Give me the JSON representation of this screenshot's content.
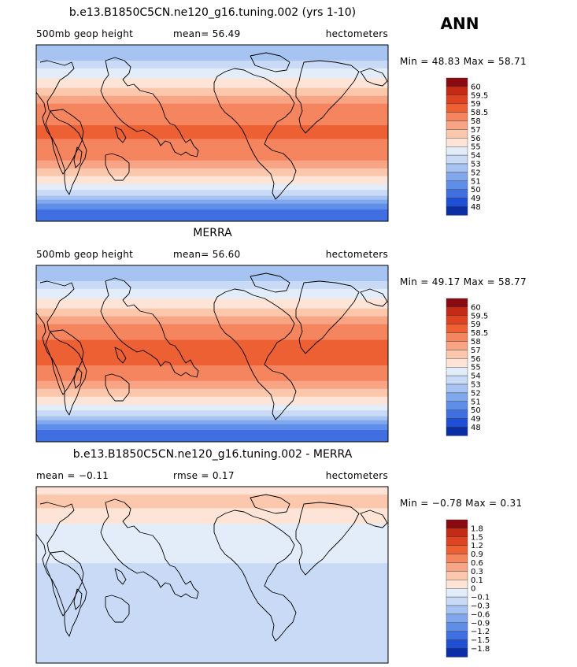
{
  "season": "ANN",
  "chart_data": [
    {
      "type": "heatmap",
      "title": "b.e13.B1850C5CN.ne120_g16.tuning.002 (yrs 1-10)",
      "left_label": "500mb geop height",
      "center_label": "mean=  56.49",
      "right_label": "hectometers",
      "minmax_label": "Min =  48.83 Max =  58.71",
      "min": 48.83,
      "max": 58.71,
      "mean": 56.49,
      "legend_levels": [
        "60",
        "59.5",
        "59",
        "58.5",
        "58",
        "57",
        "56",
        "55",
        "54",
        "53",
        "52",
        "51",
        "50",
        "49",
        "48"
      ],
      "legend_colors": [
        "#8a0a12",
        "#c42a16",
        "#dd4320",
        "#ec6034",
        "#f5855e",
        "#f8a585",
        "#fbc8ad",
        "#fde4d6",
        "#e3ecf9",
        "#c8daf6",
        "#a6c3f1",
        "#81a8ed",
        "#5f8ee9",
        "#3f6fe0",
        "#1e4fd4",
        "#0b2ea6"
      ],
      "zonal_bands": [
        {
          "lat": 90,
          "level": 52
        },
        {
          "lat": 78,
          "level": 52.5
        },
        {
          "lat": 70,
          "level": 53.5
        },
        {
          "lat": 60,
          "level": 54.5
        },
        {
          "lat": 50,
          "level": 55.5
        },
        {
          "lat": 42,
          "level": 56.5
        },
        {
          "lat": 35,
          "level": 57.5
        },
        {
          "lat": 28,
          "level": 58.2
        },
        {
          "lat": 0,
          "level": 58.6
        },
        {
          "lat": -25,
          "level": 58.2
        },
        {
          "lat": -32,
          "level": 57.5
        },
        {
          "lat": -40,
          "level": 56.5
        },
        {
          "lat": -48,
          "level": 55.5
        },
        {
          "lat": -54,
          "level": 54.5
        },
        {
          "lat": -60,
          "level": 53.5
        },
        {
          "lat": -66,
          "level": 52.5
        },
        {
          "lat": -70,
          "level": 51.5
        },
        {
          "lat": -75,
          "level": 50.5
        },
        {
          "lat": -80,
          "level": 49.5
        },
        {
          "lat": -90,
          "level": 49
        }
      ]
    },
    {
      "type": "heatmap",
      "title": "MERRA",
      "left_label": "500mb geop height",
      "center_label": "mean=  56.60",
      "right_label": "hectometers",
      "minmax_label": "Min =  49.17 Max =  58.77",
      "min": 49.17,
      "max": 58.77,
      "mean": 56.6,
      "legend_levels": [
        "60",
        "59.5",
        "59",
        "58.5",
        "58",
        "57",
        "56",
        "55",
        "54",
        "53",
        "52",
        "51",
        "50",
        "49",
        "48"
      ],
      "legend_colors": [
        "#8a0a12",
        "#c42a16",
        "#dd4320",
        "#ec6034",
        "#f5855e",
        "#f8a585",
        "#fbc8ad",
        "#fde4d6",
        "#e3ecf9",
        "#c8daf6",
        "#a6c3f1",
        "#81a8ed",
        "#5f8ee9",
        "#3f6fe0",
        "#1e4fd4",
        "#0b2ea6"
      ],
      "zonal_bands": [
        {
          "lat": 90,
          "level": 52
        },
        {
          "lat": 78,
          "level": 52.5
        },
        {
          "lat": 70,
          "level": 53.5
        },
        {
          "lat": 60,
          "level": 54.5
        },
        {
          "lat": 50,
          "level": 55.5
        },
        {
          "lat": 42,
          "level": 56.5
        },
        {
          "lat": 35,
          "level": 57.5
        },
        {
          "lat": 28,
          "level": 58.3
        },
        {
          "lat": 0,
          "level": 58.7
        },
        {
          "lat": -25,
          "level": 58.3
        },
        {
          "lat": -32,
          "level": 57.5
        },
        {
          "lat": -40,
          "level": 56.5
        },
        {
          "lat": -48,
          "level": 55.5
        },
        {
          "lat": -54,
          "level": 54.5
        },
        {
          "lat": -60,
          "level": 53.5
        },
        {
          "lat": -66,
          "level": 52.5
        },
        {
          "lat": -70,
          "level": 51.5
        },
        {
          "lat": -75,
          "level": 50.5
        },
        {
          "lat": -80,
          "level": 49.5
        },
        {
          "lat": -90,
          "level": 49.2
        }
      ]
    },
    {
      "type": "heatmap",
      "title": "b.e13.B1850C5CN.ne120_g16.tuning.002 - MERRA",
      "left_label": "mean =  −0.11",
      "center_label": "rmse =   0.17",
      "right_label": "hectometers",
      "minmax_label": "Min =  −0.78 Max =   0.31",
      "min": -0.78,
      "max": 0.31,
      "mean": -0.11,
      "rmse": 0.17,
      "legend_levels": [
        "1.8",
        "1.5",
        "1.2",
        "0.9",
        "0.6",
        "0.3",
        "0.1",
        "0",
        "−0.1",
        "−0.3",
        "−0.6",
        "−0.9",
        "−1.2",
        "−1.5",
        "−1.8"
      ],
      "legend_colors": [
        "#8a0a12",
        "#c42a16",
        "#dd4320",
        "#ec6034",
        "#f5855e",
        "#f8a585",
        "#fbc8ad",
        "#fde4d6",
        "#e3ecf9",
        "#c8daf6",
        "#a6c3f1",
        "#81a8ed",
        "#5f8ee9",
        "#3f6fe0",
        "#1e4fd4",
        "#0b2ea6"
      ],
      "zonal_bands": [
        {
          "lat": 90,
          "level": 0.05
        },
        {
          "lat": 75,
          "level": 0.15
        },
        {
          "lat": 60,
          "level": 0.05
        },
        {
          "lat": 45,
          "level": -0.05
        },
        {
          "lat": 25,
          "level": -0.05
        },
        {
          "lat": 0,
          "level": -0.15
        },
        {
          "lat": -25,
          "level": -0.2
        },
        {
          "lat": -40,
          "level": -0.2
        },
        {
          "lat": -55,
          "level": -0.15
        },
        {
          "lat": -70,
          "level": -0.2
        },
        {
          "lat": -90,
          "level": -0.2
        }
      ]
    }
  ]
}
